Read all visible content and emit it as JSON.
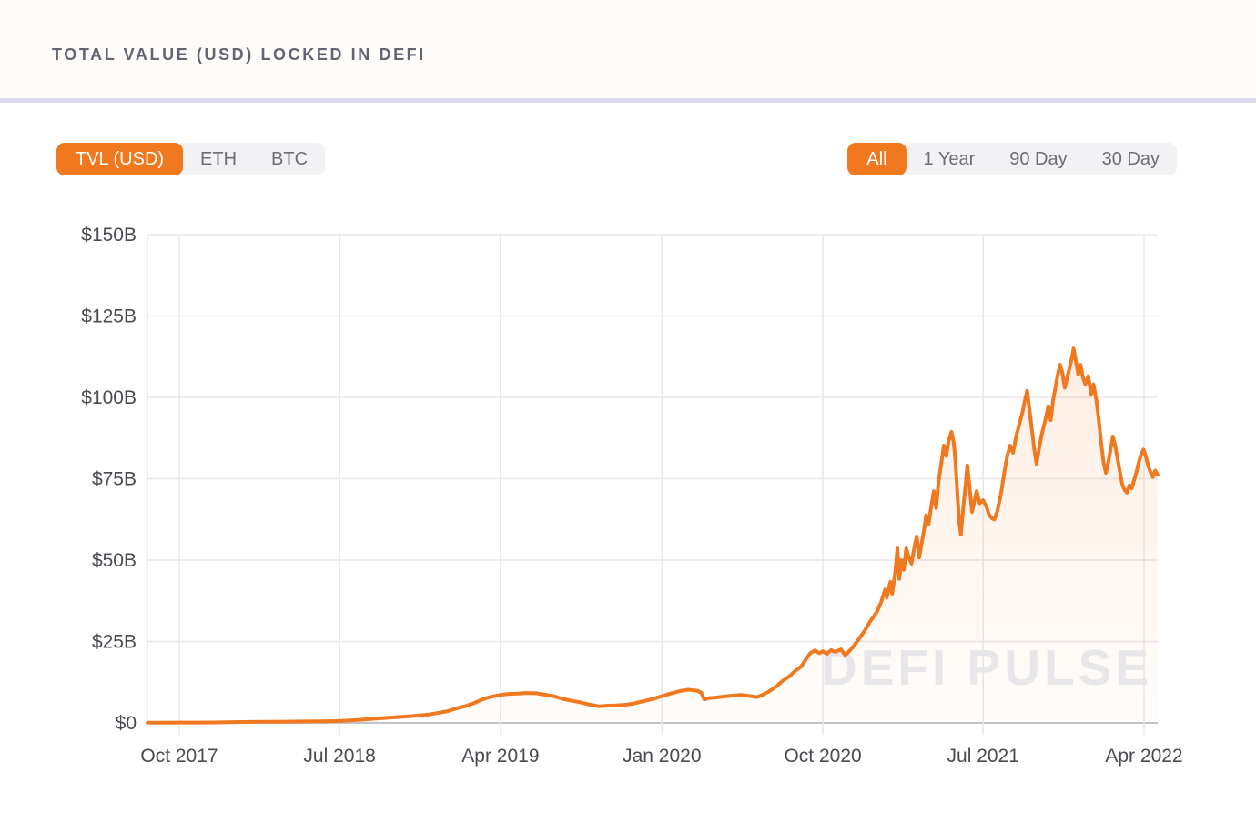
{
  "header": {
    "title": "TOTAL VALUE (USD) LOCKED IN DEFI"
  },
  "series_toggle": {
    "options": [
      {
        "label": "TVL (USD)",
        "active": true
      },
      {
        "label": "ETH",
        "active": false
      },
      {
        "label": "BTC",
        "active": false
      }
    ]
  },
  "range_toggle": {
    "options": [
      {
        "label": "All",
        "active": true
      },
      {
        "label": "1 Year",
        "active": false
      },
      {
        "label": "90 Day",
        "active": false
      },
      {
        "label": "30 Day",
        "active": false
      }
    ]
  },
  "watermark": "DEFI PULSE",
  "colors": {
    "accent_orange": "#F0781E",
    "toggle_bg": "#f2f1f4",
    "toggle_text": "#6e6d76",
    "grid_line": "#e8e7eb",
    "axis_line": "#c4c3c9",
    "axis_text": "#4b4a50",
    "watermark": "#e7e6e9",
    "divider": "#ddd7f0"
  },
  "chart_data": {
    "type": "area",
    "title": "Total Value (USD) Locked in DeFi",
    "xlabel": "",
    "ylabel": "",
    "unit": "billion USD",
    "ylim": [
      0,
      150
    ],
    "grid": true,
    "legend_position": "none",
    "y_axis": {
      "ticks": [
        {
          "label": "$150B",
          "value": 150
        },
        {
          "label": "$125B",
          "value": 125
        },
        {
          "label": "$100B",
          "value": 100
        },
        {
          "label": "$75B",
          "value": 75
        },
        {
          "label": "$50B",
          "value": 50
        },
        {
          "label": "$25B",
          "value": 25
        },
        {
          "label": "$0",
          "value": 0
        }
      ]
    },
    "x_axis": {
      "ticks": [
        {
          "label": "Oct 2017",
          "date": "2017-10-01"
        },
        {
          "label": "Jul 2018",
          "date": "2018-07-01"
        },
        {
          "label": "Apr 2019",
          "date": "2019-04-01"
        },
        {
          "label": "Jan 2020",
          "date": "2020-01-01"
        },
        {
          "label": "Oct 2020",
          "date": "2020-10-01"
        },
        {
          "label": "Jul 2021",
          "date": "2021-07-01"
        },
        {
          "label": "Apr 2022",
          "date": "2022-04-01"
        }
      ]
    },
    "series": [
      {
        "name": "TVL (USD)",
        "color": "#F0781E",
        "points": [
          [
            "2017-08-08",
            0.05
          ],
          [
            "2017-09-01",
            0.08
          ],
          [
            "2017-10-01",
            0.1
          ],
          [
            "2017-11-01",
            0.12
          ],
          [
            "2017-12-01",
            0.15
          ],
          [
            "2018-01-01",
            0.25
          ],
          [
            "2018-02-01",
            0.3
          ],
          [
            "2018-03-01",
            0.33
          ],
          [
            "2018-04-01",
            0.38
          ],
          [
            "2018-05-01",
            0.45
          ],
          [
            "2018-06-01",
            0.5
          ],
          [
            "2018-07-01",
            0.6
          ],
          [
            "2018-08-01",
            0.9
          ],
          [
            "2018-09-01",
            1.3
          ],
          [
            "2018-10-01",
            1.7
          ],
          [
            "2018-11-01",
            2.1
          ],
          [
            "2018-12-01",
            2.6
          ],
          [
            "2019-01-01",
            3.6
          ],
          [
            "2019-01-15",
            4.4
          ],
          [
            "2019-02-01",
            5.2
          ],
          [
            "2019-02-15",
            6.1
          ],
          [
            "2019-03-01",
            7.2
          ],
          [
            "2019-03-15",
            8.0
          ],
          [
            "2019-04-01",
            8.6
          ],
          [
            "2019-04-15",
            8.9
          ],
          [
            "2019-05-01",
            9.0
          ],
          [
            "2019-05-15",
            9.2
          ],
          [
            "2019-06-01",
            9.1
          ],
          [
            "2019-06-15",
            8.7
          ],
          [
            "2019-07-01",
            8.2
          ],
          [
            "2019-07-15",
            7.4
          ],
          [
            "2019-08-01",
            6.8
          ],
          [
            "2019-08-15",
            6.3
          ],
          [
            "2019-09-01",
            5.6
          ],
          [
            "2019-09-15",
            5.1
          ],
          [
            "2019-10-01",
            5.3
          ],
          [
            "2019-10-15",
            5.4
          ],
          [
            "2019-11-01",
            5.6
          ],
          [
            "2019-11-15",
            6.0
          ],
          [
            "2019-12-01",
            6.7
          ],
          [
            "2019-12-15",
            7.3
          ],
          [
            "2020-01-01",
            8.2
          ],
          [
            "2020-01-15",
            9.0
          ],
          [
            "2020-02-01",
            9.8
          ],
          [
            "2020-02-15",
            10.2
          ],
          [
            "2020-03-01",
            9.9
          ],
          [
            "2020-03-08",
            9.3
          ],
          [
            "2020-03-13",
            7.2
          ],
          [
            "2020-03-20",
            7.6
          ],
          [
            "2020-04-01",
            7.8
          ],
          [
            "2020-04-15",
            8.1
          ],
          [
            "2020-05-01",
            8.4
          ],
          [
            "2020-05-15",
            8.6
          ],
          [
            "2020-06-01",
            8.2
          ],
          [
            "2020-06-10",
            7.9
          ],
          [
            "2020-06-20",
            8.6
          ],
          [
            "2020-07-01",
            9.6
          ],
          [
            "2020-07-15",
            11.4
          ],
          [
            "2020-07-25",
            13.0
          ],
          [
            "2020-08-05",
            14.3
          ],
          [
            "2020-08-15",
            16.0
          ],
          [
            "2020-08-25",
            17.3
          ],
          [
            "2020-09-02",
            19.5
          ],
          [
            "2020-09-10",
            21.5
          ],
          [
            "2020-09-18",
            22.3
          ],
          [
            "2020-09-25",
            21.4
          ],
          [
            "2020-10-01",
            22.0
          ],
          [
            "2020-10-08",
            21.2
          ],
          [
            "2020-10-15",
            22.4
          ],
          [
            "2020-10-22",
            21.8
          ],
          [
            "2020-11-01",
            22.6
          ],
          [
            "2020-11-08",
            20.8
          ],
          [
            "2020-11-15",
            22.0
          ],
          [
            "2020-11-22",
            23.5
          ],
          [
            "2020-12-01",
            25.7
          ],
          [
            "2020-12-10",
            28.0
          ],
          [
            "2020-12-20",
            31.0
          ],
          [
            "2021-01-01",
            34.1
          ],
          [
            "2021-01-08",
            37.0
          ],
          [
            "2021-01-15",
            41.0
          ],
          [
            "2021-01-18",
            38.5
          ],
          [
            "2021-01-24",
            43.3
          ],
          [
            "2021-01-27",
            39.7
          ],
          [
            "2021-02-01",
            46.0
          ],
          [
            "2021-02-05",
            53.6
          ],
          [
            "2021-02-08",
            44.2
          ],
          [
            "2021-02-12",
            50.0
          ],
          [
            "2021-02-16",
            47.0
          ],
          [
            "2021-02-20",
            53.6
          ],
          [
            "2021-02-24",
            51.0
          ],
          [
            "2021-03-01",
            48.9
          ],
          [
            "2021-03-06",
            54.0
          ],
          [
            "2021-03-10",
            57.3
          ],
          [
            "2021-03-14",
            50.8
          ],
          [
            "2021-03-18",
            55.0
          ],
          [
            "2021-03-22",
            59.0
          ],
          [
            "2021-03-26",
            63.8
          ],
          [
            "2021-03-30",
            61.0
          ],
          [
            "2021-04-04",
            67.0
          ],
          [
            "2021-04-08",
            71.2
          ],
          [
            "2021-04-12",
            66.0
          ],
          [
            "2021-04-16",
            74.0
          ],
          [
            "2021-04-20",
            79.0
          ],
          [
            "2021-04-25",
            85.2
          ],
          [
            "2021-04-29",
            82.0
          ],
          [
            "2021-05-03",
            86.5
          ],
          [
            "2021-05-08",
            89.4
          ],
          [
            "2021-05-12",
            86.0
          ],
          [
            "2021-05-15",
            80.0
          ],
          [
            "2021-05-18",
            71.0
          ],
          [
            "2021-05-21",
            62.0
          ],
          [
            "2021-05-24",
            57.8
          ],
          [
            "2021-05-28",
            66.0
          ],
          [
            "2021-06-01",
            73.0
          ],
          [
            "2021-06-04",
            79.1
          ],
          [
            "2021-06-08",
            72.0
          ],
          [
            "2021-06-12",
            64.8
          ],
          [
            "2021-06-16",
            68.0
          ],
          [
            "2021-06-20",
            71.2
          ],
          [
            "2021-06-25",
            67.5
          ],
          [
            "2021-07-01",
            68.4
          ],
          [
            "2021-07-06",
            66.6
          ],
          [
            "2021-07-11",
            64.0
          ],
          [
            "2021-07-16",
            62.8
          ],
          [
            "2021-07-20",
            62.5
          ],
          [
            "2021-07-25",
            65.0
          ],
          [
            "2021-08-01",
            71.0
          ],
          [
            "2021-08-06",
            77.0
          ],
          [
            "2021-08-11",
            82.0
          ],
          [
            "2021-08-16",
            85.2
          ],
          [
            "2021-08-21",
            83.0
          ],
          [
            "2021-08-26",
            88.0
          ],
          [
            "2021-09-01",
            92.0
          ],
          [
            "2021-09-06",
            95.5
          ],
          [
            "2021-09-10",
            99.0
          ],
          [
            "2021-09-14",
            102.0
          ],
          [
            "2021-09-18",
            96.0
          ],
          [
            "2021-09-22",
            90.0
          ],
          [
            "2021-09-26",
            84.0
          ],
          [
            "2021-09-30",
            79.6
          ],
          [
            "2021-10-04",
            84.0
          ],
          [
            "2021-10-08",
            88.0
          ],
          [
            "2021-10-12",
            91.0
          ],
          [
            "2021-10-16",
            94.0
          ],
          [
            "2021-10-20",
            97.3
          ],
          [
            "2021-10-24",
            93.0
          ],
          [
            "2021-10-28",
            99.0
          ],
          [
            "2021-11-01",
            103.0
          ],
          [
            "2021-11-05",
            107.0
          ],
          [
            "2021-11-09",
            110.0
          ],
          [
            "2021-11-13",
            107.5
          ],
          [
            "2021-11-17",
            103.0
          ],
          [
            "2021-11-21",
            106.0
          ],
          [
            "2021-11-25",
            109.0
          ],
          [
            "2021-11-29",
            112.0
          ],
          [
            "2021-12-02",
            115.0
          ],
          [
            "2021-12-06",
            111.0
          ],
          [
            "2021-12-10",
            107.0
          ],
          [
            "2021-12-14",
            110.0
          ],
          [
            "2021-12-18",
            106.0
          ],
          [
            "2021-12-22",
            104.0
          ],
          [
            "2021-12-27",
            106.5
          ],
          [
            "2022-01-01",
            101.0
          ],
          [
            "2022-01-05",
            104.0
          ],
          [
            "2022-01-10",
            99.0
          ],
          [
            "2022-01-14",
            93.0
          ],
          [
            "2022-01-18",
            86.0
          ],
          [
            "2022-01-22",
            80.0
          ],
          [
            "2022-01-26",
            76.8
          ],
          [
            "2022-01-30",
            80.0
          ],
          [
            "2022-02-03",
            84.0
          ],
          [
            "2022-02-07",
            88.0
          ],
          [
            "2022-02-11",
            85.0
          ],
          [
            "2022-02-15",
            81.0
          ],
          [
            "2022-02-19",
            77.0
          ],
          [
            "2022-02-23",
            73.2
          ],
          [
            "2022-02-27",
            71.5
          ],
          [
            "2022-03-03",
            70.7
          ],
          [
            "2022-03-07",
            73.0
          ],
          [
            "2022-03-11",
            72.0
          ],
          [
            "2022-03-15",
            74.5
          ],
          [
            "2022-03-19",
            77.0
          ],
          [
            "2022-03-23",
            80.0
          ],
          [
            "2022-03-27",
            82.5
          ],
          [
            "2022-03-31",
            84.0
          ],
          [
            "2022-04-04",
            82.0
          ],
          [
            "2022-04-08",
            79.0
          ],
          [
            "2022-04-12",
            77.0
          ],
          [
            "2022-04-16",
            75.5
          ],
          [
            "2022-04-20",
            77.5
          ],
          [
            "2022-04-24",
            76.3
          ]
        ]
      }
    ]
  }
}
